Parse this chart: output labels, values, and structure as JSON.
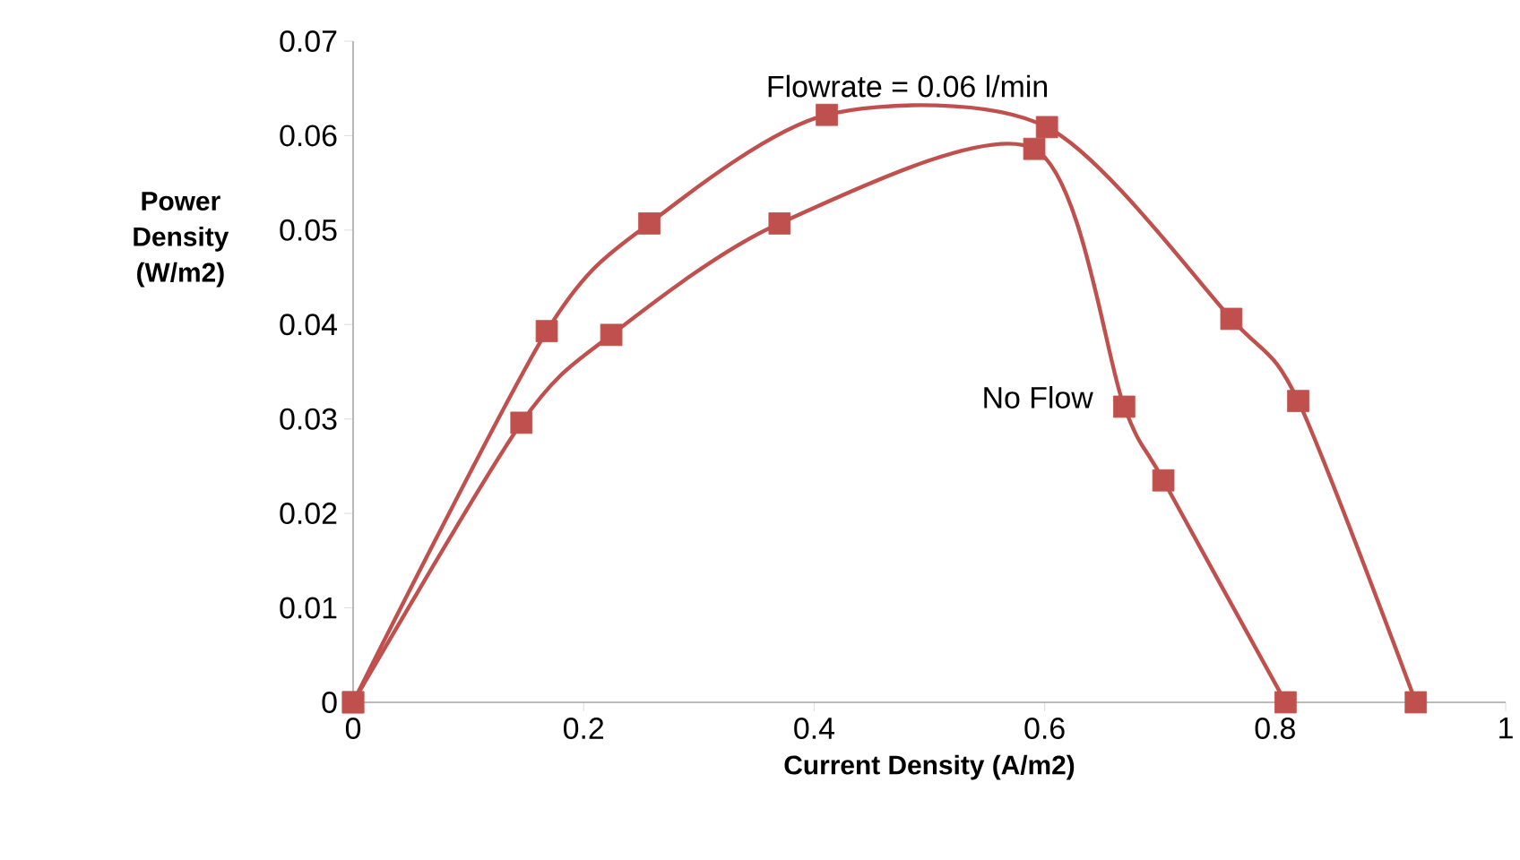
{
  "chart_data": {
    "type": "line",
    "xlabel": "Current Density (A/m2)",
    "ylabel": "Power Density (W/m2)",
    "xlim": [
      0,
      1
    ],
    "ylim": [
      0,
      0.07
    ],
    "xticks": [
      0,
      0.2,
      0.4,
      0.6,
      0.8,
      1
    ],
    "yticks": [
      0,
      0.01,
      0.02,
      0.03,
      0.04,
      0.05,
      0.06,
      0.07
    ],
    "grid": false,
    "legend": false,
    "marker": "square",
    "line_style": "solid",
    "series": [
      {
        "name": "Flowrate = 0.06  l/min",
        "color": "#c0504d",
        "x": [
          0,
          0.168,
          0.257,
          0.411,
          0.602,
          0.762,
          0.82,
          0.922
        ],
        "values": [
          0,
          0.0393,
          0.0507,
          0.0622,
          0.0609,
          0.0406,
          0.0319,
          0
        ]
      },
      {
        "name": "No Flow",
        "color": "#c0504d",
        "x": [
          0,
          0.146,
          0.224,
          0.37,
          0.591,
          0.669,
          0.703,
          0.809
        ],
        "values": [
          0,
          0.0296,
          0.0389,
          0.0507,
          0.0586,
          0.0313,
          0.0235,
          0
        ]
      }
    ]
  }
}
